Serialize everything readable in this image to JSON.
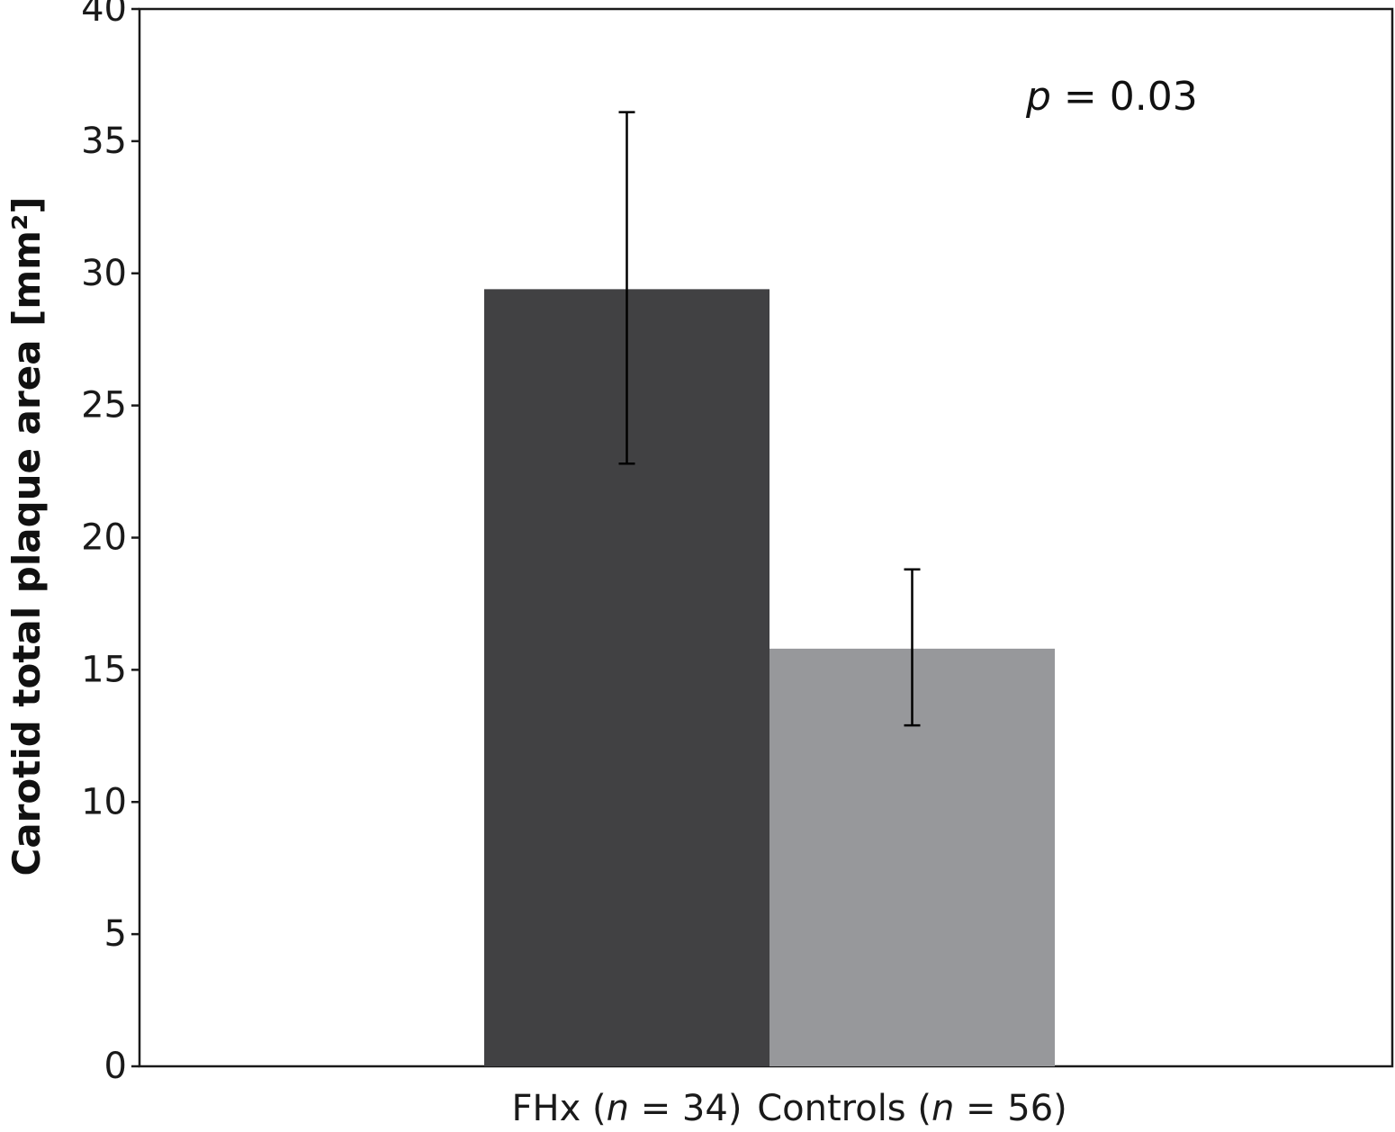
{
  "chart_data": {
    "type": "bar",
    "title": "",
    "xlabel": "",
    "ylabel": "Carotid total plaque area [mm²]",
    "ylim": [
      0,
      40
    ],
    "yticks": [
      0,
      5,
      10,
      15,
      20,
      25,
      30,
      35,
      40
    ],
    "grid": false,
    "categories": [
      {
        "parts": [
          {
            "t": "FHx ("
          },
          {
            "t": "n",
            "italic": true
          },
          {
            "t": " = 34)"
          }
        ]
      },
      {
        "parts": [
          {
            "t": "Controls ("
          },
          {
            "t": "n",
            "italic": true
          },
          {
            "t": " = 56)"
          }
        ]
      }
    ],
    "values": [
      29.4,
      15.8
    ],
    "error_low": [
      22.8,
      12.9
    ],
    "error_high": [
      36.1,
      18.8
    ],
    "colors": [
      "#414143",
      "#97989b"
    ],
    "annotation": {
      "p_symbol": "p",
      "rest": " = 0.03"
    }
  }
}
